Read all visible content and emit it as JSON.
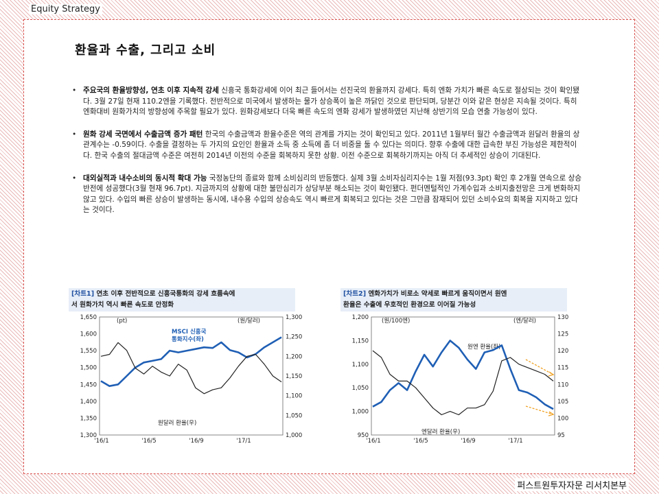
{
  "header": {
    "section": "Equity Strategy"
  },
  "title": "환율과 수출, 그리고 소비",
  "bullets": [
    {
      "lead": "주요국의 환율방향성, 연초 이후 지속적 강세",
      "body": " 신흥국 통화강세에 이어 최근 들어서는 선진국의 환율까지 강세다. 특히 엔화 가치가 빠른 속도로 절상되는 것이 확인됐다. 3월 27일 현재 110.2엔을 기록했다. 전반적으로 미국에서 발생하는 물가 상승폭이 높은 까닭인 것으로 판단되며, 당분간 이와 같은 현상은 지속될 것이다. 특히 엔화대비 원화가치의 방향성에 주목할 필요가 있다. 원화강세보다 더욱 빠른 속도의 엔화 강세가 발생하였던 지난해 상반기의 모습 연출 가능성이 있다."
    },
    {
      "lead": "원화 강세 국면에서 수출금액 증가 패턴",
      "body": " 한국의 수출금액과 환율수준은 역의 관계를 가지는 것이 확인되고 있다. 2011년 1월부터 월간 수출금액과 원달러 환율의 상관계수는 -0.59이다. 수출을 결정하는 두 가지의 요인인 환율과 소득 중 소득에 좀 더 비중을 둘 수 있다는 의미다. 향후 수출에 대한 급속한 부진 가능성은 제한적이다. 한국 수출의 절대금액 수준은 여전히 2014년 이전의 수준을 회복하지 못한 상황. 이전 수준으로 회복하기까지는 아직 더 추세적인 상승이 기대된다."
    },
    {
      "lead": "대외실적과 내수소비의 동시적 확대 가능",
      "body": " 국정농단의 종료와 함께 소비심리의 반등했다. 실제 3월 소비자심리지수는 1월 저점(93.3pt) 확인 후 2개월 연속으로 상승 반전에 성공했다(3월 현재 96.7pt). 지금까지의 상황에 대한 불만심리가 상당부분 해소되는 것이 확인됐다. 펀더멘털적인 가계수입과 소비지출전망은 크게 변화하지 않고 있다. 수입의 빠른 상승이 발생하는 동시에, 내수용 수입의 상승속도 역시 빠르게 회복되고 있다는 것은 그만큼 잠재되어 있던 소비수요의 회복을 지지하고 있다는 것이다."
    }
  ],
  "charts": {
    "c1": {
      "tag": "[차트1]",
      "title_l1": " 연초 이후 전반적으로 신흥국통화의 강세 흐름속에",
      "title_l2": "서 원화가치 역시 빠른 속도로 안정화",
      "unit_left": "(pt)",
      "unit_right": "(원/달러)",
      "legend_a1": "MSCI 신흥국",
      "legend_a2": "통화지수(좌)",
      "legend_b": "원달러 환율(우)"
    },
    "c2": {
      "tag": "[차트2]",
      "title_l1": " 엔화가치가 비로소 약세로 빠르게 움직이면서 원엔",
      "title_l2": "환율은 수출에 우호적인 환경으로 이어질 가능성",
      "unit_left": "(원/100엔)",
      "unit_right": "(엔/달러)",
      "legend_a": "원엔 환율(좌)",
      "legend_b": "엔달러 환율(우)"
    }
  },
  "footer": "퍼스트원투자자문 리서치본부",
  "chart_data": [
    {
      "type": "line",
      "x_ticks": [
        "'16/1",
        "'16/5",
        "'16/9",
        "'17/1"
      ],
      "left_axis": {
        "ylim": [
          1300,
          1650
        ],
        "ticks": [
          "1,650",
          "1,600",
          "1,550",
          "1,500",
          "1,450",
          "1,400",
          "1,350",
          "1,300"
        ]
      },
      "right_axis": {
        "ylim": [
          1000,
          1300
        ],
        "ticks": [
          "1,300",
          "1,250",
          "1,200",
          "1,150",
          "1,100",
          "1,050",
          "1,000"
        ]
      },
      "series": [
        {
          "name": "MSCI 신흥국 통화지수(좌)",
          "axis": "left",
          "color": "#1f5fb5",
          "values": [
            1460,
            1445,
            1450,
            1475,
            1500,
            1515,
            1520,
            1525,
            1550,
            1545,
            1550,
            1555,
            1560,
            1558,
            1575,
            1552,
            1545,
            1530,
            1540,
            1560,
            1575,
            1590
          ]
        },
        {
          "name": "원달러 환율(우)",
          "axis": "right",
          "color": "#222222",
          "values": [
            1200,
            1205,
            1235,
            1215,
            1170,
            1155,
            1175,
            1160,
            1150,
            1180,
            1165,
            1120,
            1105,
            1115,
            1120,
            1145,
            1175,
            1200,
            1205,
            1180,
            1150,
            1135
          ]
        }
      ]
    },
    {
      "type": "line",
      "x_ticks": [
        "'16/1",
        "'16/5",
        "'16/9",
        "'17/1"
      ],
      "left_axis": {
        "ylim": [
          950,
          1200
        ],
        "ticks": [
          "1,200",
          "1,150",
          "1,100",
          "1,050",
          "1,000",
          "950"
        ]
      },
      "right_axis": {
        "ylim": [
          95,
          130
        ],
        "ticks": [
          "130",
          "125",
          "120",
          "115",
          "110",
          "105",
          "100",
          "95"
        ]
      },
      "series": [
        {
          "name": "원엔 환율(좌)",
          "axis": "left",
          "color": "#1f5fb5",
          "values": [
            1010,
            1020,
            1045,
            1060,
            1045,
            1085,
            1120,
            1095,
            1125,
            1150,
            1135,
            1110,
            1090,
            1125,
            1130,
            1140,
            1090,
            1045,
            1040,
            1030,
            1015,
            1005
          ]
        },
        {
          "name": "엔달러 환율(우)",
          "axis": "right",
          "color": "#222222",
          "values": [
            120,
            118,
            113,
            111,
            111,
            109,
            106,
            103,
            101,
            102,
            101,
            103,
            103,
            104,
            108,
            117,
            118,
            116,
            115,
            114,
            113,
            111
          ]
        }
      ]
    }
  ]
}
